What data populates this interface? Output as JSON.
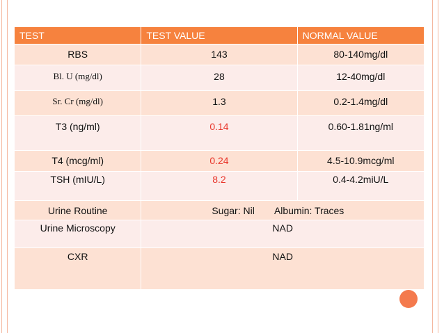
{
  "colors": {
    "header_bg": "#f6823e",
    "row_bg": "#fde1d3",
    "abnormal_text": "#e8352a",
    "accent_dot": "#f47a4d"
  },
  "table": {
    "headers": [
      "TEST",
      "TEST VALUE",
      "NORMAL VALUE"
    ],
    "rows": [
      {
        "test": "RBS",
        "value": "143",
        "normal": "80-140mg/dl"
      },
      {
        "test": "Bl. U (mg/dl)",
        "value": "28",
        "normal": "12-40mg/dl"
      },
      {
        "test": "Sr. Cr (mg/dl)",
        "value": "1.3",
        "normal": "0.2-1.4mg/dl"
      },
      {
        "test": "T3 (ng/ml)",
        "value": "0.14",
        "normal": "0.60-1.81ng/ml"
      },
      {
        "test": "T4 (mcg/ml)",
        "value": "0.24",
        "normal": "4.5-10.9mcg/ml"
      },
      {
        "test": "TSH (mIU/L)",
        "value": "8.2",
        "normal": "0.4-4.2miU/L"
      },
      {
        "test": "Urine Routine",
        "value": "Sugar: Nil",
        "normal": "Albumin: Traces"
      },
      {
        "test": "Urine Microscopy",
        "value": "NAD"
      },
      {
        "test": "CXR",
        "value": "NAD"
      }
    ]
  }
}
